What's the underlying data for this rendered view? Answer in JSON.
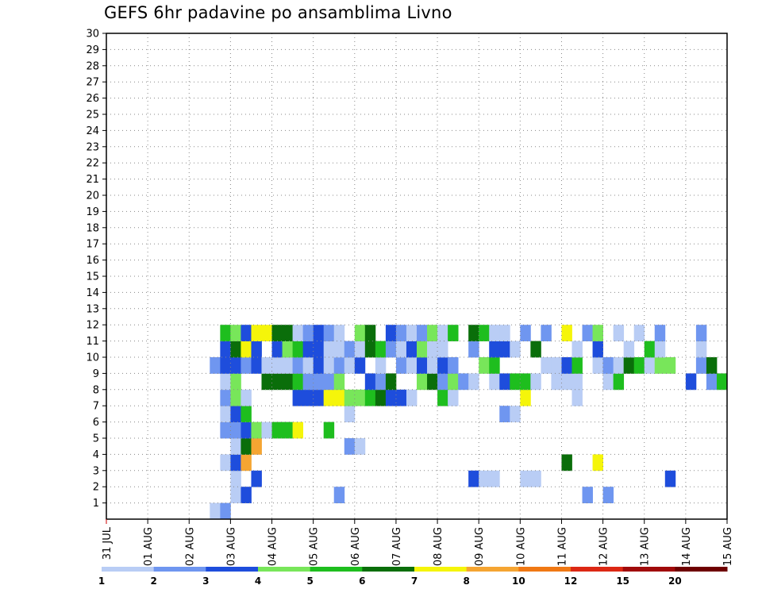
{
  "chart_data": {
    "type": "heatmap",
    "title": "GEFS 6hr padavine po ansamblima Livno",
    "xlabel": "",
    "ylabel": "",
    "x_ticks": [
      "31 JUL",
      "01 AUG",
      "02 AUG",
      "03 AUG",
      "04 AUG",
      "05 AUG",
      "06 AUG",
      "07 AUG",
      "08 AUG",
      "09 AUG",
      "10 AUG",
      "11 AUG",
      "12 AUG",
      "13 AUG",
      "14 AUG",
      "15 AUG"
    ],
    "y_ticks": [
      "1",
      "2",
      "3",
      "4",
      "5",
      "6",
      "7",
      "8",
      "9",
      "10",
      "11",
      "12",
      "13",
      "14",
      "15",
      "16",
      "17",
      "18",
      "19",
      "20",
      "21",
      "22",
      "23",
      "24",
      "25",
      "26",
      "27",
      "28",
      "29",
      "30"
    ],
    "xlim": [
      0,
      60
    ],
    "ylim": [
      0,
      30
    ],
    "x_unit": "6-hour steps since 31 JUL 00z",
    "grid": true,
    "color_scale": {
      "labels": [
        "1",
        "2",
        "3",
        "4",
        "5",
        "6",
        "7",
        "8",
        "10",
        "12",
        "15",
        "20"
      ],
      "colors": [
        "#b9cdf5",
        "#6f96f0",
        "#1e4ddc",
        "#78e65a",
        "#1ebe1e",
        "#0a6e0a",
        "#f5f50a",
        "#f5a532",
        "#f07814",
        "#dc2814",
        "#a00a0a",
        "#6e0000"
      ]
    },
    "cells": [
      [
        10,
        0,
        0
      ],
      [
        11,
        0,
        1
      ],
      [
        12,
        1,
        0
      ],
      [
        13,
        1,
        2
      ],
      [
        22,
        1,
        1
      ],
      [
        46,
        1,
        1
      ],
      [
        48,
        1,
        1
      ],
      [
        12,
        2,
        0
      ],
      [
        14,
        2,
        2
      ],
      [
        35,
        2,
        2
      ],
      [
        36,
        2,
        0
      ],
      [
        37,
        2,
        0
      ],
      [
        40,
        2,
        0
      ],
      [
        41,
        2,
        0
      ],
      [
        54,
        2,
        2
      ],
      [
        11,
        3,
        0
      ],
      [
        12,
        3,
        2
      ],
      [
        13,
        3,
        7
      ],
      [
        44,
        3,
        5
      ],
      [
        47,
        3,
        6
      ],
      [
        12,
        4,
        0
      ],
      [
        13,
        4,
        5
      ],
      [
        14,
        4,
        7
      ],
      [
        23,
        4,
        1
      ],
      [
        24,
        4,
        0
      ],
      [
        11,
        5,
        1
      ],
      [
        12,
        5,
        1
      ],
      [
        13,
        5,
        2
      ],
      [
        14,
        5,
        3
      ],
      [
        15,
        5,
        0
      ],
      [
        16,
        5,
        4
      ],
      [
        17,
        5,
        4
      ],
      [
        18,
        5,
        6
      ],
      [
        21,
        5,
        4
      ],
      [
        11,
        6,
        0
      ],
      [
        12,
        6,
        2
      ],
      [
        13,
        6,
        4
      ],
      [
        23,
        6,
        0
      ],
      [
        38,
        6,
        1
      ],
      [
        39,
        6,
        0
      ],
      [
        11,
        7,
        1
      ],
      [
        12,
        7,
        3
      ],
      [
        13,
        7,
        0
      ],
      [
        18,
        7,
        2
      ],
      [
        19,
        7,
        2
      ],
      [
        20,
        7,
        2
      ],
      [
        21,
        7,
        6
      ],
      [
        22,
        7,
        6
      ],
      [
        23,
        7,
        3
      ],
      [
        24,
        7,
        3
      ],
      [
        25,
        7,
        4
      ],
      [
        26,
        7,
        5
      ],
      [
        27,
        7,
        2
      ],
      [
        28,
        7,
        2
      ],
      [
        29,
        7,
        0
      ],
      [
        32,
        7,
        4
      ],
      [
        33,
        7,
        0
      ],
      [
        40,
        7,
        6
      ],
      [
        45,
        7,
        0
      ],
      [
        11,
        8,
        0
      ],
      [
        12,
        8,
        3
      ],
      [
        15,
        8,
        5
      ],
      [
        16,
        8,
        5
      ],
      [
        17,
        8,
        5
      ],
      [
        18,
        8,
        4
      ],
      [
        19,
        8,
        1
      ],
      [
        20,
        8,
        1
      ],
      [
        21,
        8,
        1
      ],
      [
        22,
        8,
        3
      ],
      [
        25,
        8,
        2
      ],
      [
        26,
        8,
        1
      ],
      [
        27,
        8,
        5
      ],
      [
        30,
        8,
        3
      ],
      [
        31,
        8,
        5
      ],
      [
        32,
        8,
        1
      ],
      [
        33,
        8,
        3
      ],
      [
        34,
        8,
        1
      ],
      [
        35,
        8,
        0
      ],
      [
        37,
        8,
        0
      ],
      [
        38,
        8,
        2
      ],
      [
        39,
        8,
        4
      ],
      [
        40,
        8,
        4
      ],
      [
        41,
        8,
        0
      ],
      [
        43,
        8,
        0
      ],
      [
        44,
        8,
        0
      ],
      [
        45,
        8,
        0
      ],
      [
        48,
        8,
        0
      ],
      [
        49,
        8,
        4
      ],
      [
        56,
        8,
        2
      ],
      [
        58,
        8,
        1
      ],
      [
        59,
        8,
        4
      ],
      [
        10,
        9,
        1
      ],
      [
        11,
        9,
        2
      ],
      [
        12,
        9,
        2
      ],
      [
        13,
        9,
        1
      ],
      [
        14,
        9,
        2
      ],
      [
        15,
        9,
        0
      ],
      [
        16,
        9,
        0
      ],
      [
        17,
        9,
        0
      ],
      [
        18,
        9,
        1
      ],
      [
        19,
        9,
        0
      ],
      [
        20,
        9,
        2
      ],
      [
        21,
        9,
        0
      ],
      [
        22,
        9,
        1
      ],
      [
        23,
        9,
        0
      ],
      [
        24,
        9,
        2
      ],
      [
        26,
        9,
        0
      ],
      [
        28,
        9,
        1
      ],
      [
        29,
        9,
        0
      ],
      [
        30,
        9,
        2
      ],
      [
        31,
        9,
        0
      ],
      [
        32,
        9,
        2
      ],
      [
        33,
        9,
        1
      ],
      [
        36,
        9,
        3
      ],
      [
        37,
        9,
        4
      ],
      [
        42,
        9,
        0
      ],
      [
        43,
        9,
        0
      ],
      [
        44,
        9,
        2
      ],
      [
        45,
        9,
        4
      ],
      [
        47,
        9,
        0
      ],
      [
        48,
        9,
        1
      ],
      [
        49,
        9,
        0
      ],
      [
        50,
        9,
        5
      ],
      [
        51,
        9,
        4
      ],
      [
        52,
        9,
        0
      ],
      [
        53,
        9,
        3
      ],
      [
        54,
        9,
        3
      ],
      [
        57,
        9,
        1
      ],
      [
        58,
        9,
        5
      ],
      [
        11,
        10,
        2
      ],
      [
        12,
        10,
        5
      ],
      [
        13,
        10,
        6
      ],
      [
        14,
        10,
        2
      ],
      [
        16,
        10,
        2
      ],
      [
        17,
        10,
        3
      ],
      [
        18,
        10,
        4
      ],
      [
        19,
        10,
        2
      ],
      [
        20,
        10,
        2
      ],
      [
        21,
        10,
        0
      ],
      [
        22,
        10,
        0
      ],
      [
        23,
        10,
        1
      ],
      [
        24,
        10,
        0
      ],
      [
        25,
        10,
        5
      ],
      [
        26,
        10,
        4
      ],
      [
        27,
        10,
        1
      ],
      [
        28,
        10,
        0
      ],
      [
        29,
        10,
        2
      ],
      [
        30,
        10,
        3
      ],
      [
        31,
        10,
        0
      ],
      [
        32,
        10,
        0
      ],
      [
        35,
        10,
        1
      ],
      [
        37,
        10,
        2
      ],
      [
        38,
        10,
        2
      ],
      [
        39,
        10,
        0
      ],
      [
        41,
        10,
        5
      ],
      [
        45,
        10,
        0
      ],
      [
        47,
        10,
        2
      ],
      [
        50,
        10,
        0
      ],
      [
        52,
        10,
        4
      ],
      [
        53,
        10,
        0
      ],
      [
        57,
        10,
        0
      ],
      [
        11,
        11,
        4
      ],
      [
        12,
        11,
        3
      ],
      [
        13,
        11,
        2
      ],
      [
        14,
        11,
        6
      ],
      [
        15,
        11,
        6
      ],
      [
        16,
        11,
        5
      ],
      [
        17,
        11,
        5
      ],
      [
        18,
        11,
        0
      ],
      [
        19,
        11,
        1
      ],
      [
        20,
        11,
        2
      ],
      [
        21,
        11,
        1
      ],
      [
        22,
        11,
        0
      ],
      [
        24,
        11,
        3
      ],
      [
        25,
        11,
        5
      ],
      [
        27,
        11,
        2
      ],
      [
        28,
        11,
        1
      ],
      [
        29,
        11,
        0
      ],
      [
        30,
        11,
        1
      ],
      [
        31,
        11,
        3
      ],
      [
        32,
        11,
        0
      ],
      [
        33,
        11,
        4
      ],
      [
        35,
        11,
        5
      ],
      [
        36,
        11,
        4
      ],
      [
        37,
        11,
        0
      ],
      [
        38,
        11,
        0
      ],
      [
        40,
        11,
        1
      ],
      [
        42,
        11,
        1
      ],
      [
        44,
        11,
        6
      ],
      [
        46,
        11,
        1
      ],
      [
        47,
        11,
        3
      ],
      [
        49,
        11,
        0
      ],
      [
        51,
        11,
        0
      ],
      [
        53,
        11,
        1
      ],
      [
        57,
        11,
        1
      ]
    ]
  },
  "colorbar_labels": [
    "1",
    "2",
    "3",
    "4",
    "5",
    "6",
    "7",
    "8",
    "10",
    "12",
    "15",
    "20"
  ]
}
